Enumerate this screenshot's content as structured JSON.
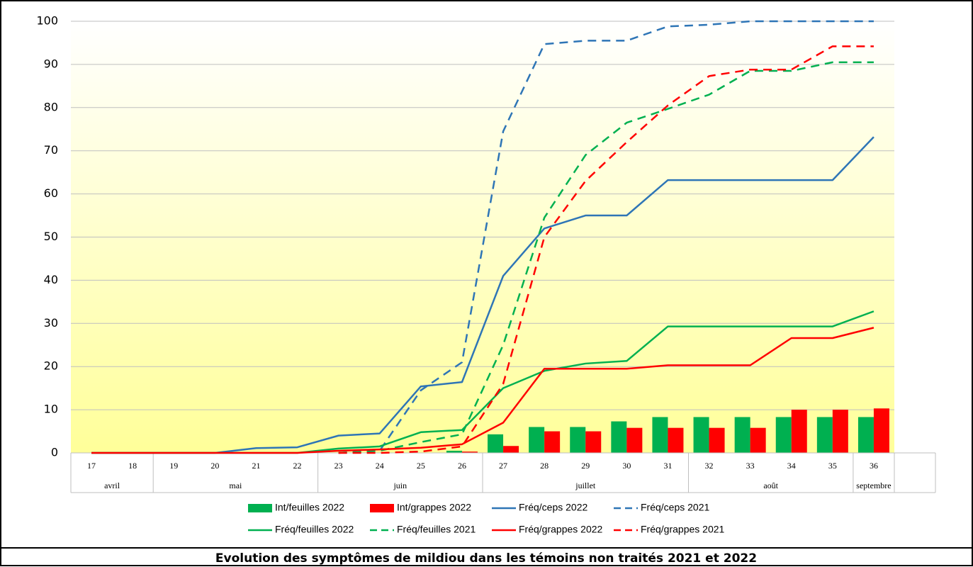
{
  "chart_data": {
    "type": "bar_line",
    "title": "Evolution des symptômes de mildiou dans les témoins non traités 2021 et 2022",
    "categories": [
      "17",
      "18",
      "19",
      "20",
      "21",
      "22",
      "23",
      "24",
      "25",
      "26",
      "27",
      "28",
      "29",
      "30",
      "31",
      "32",
      "33",
      "34",
      "35",
      "36"
    ],
    "category_groups": [
      {
        "label": "avril",
        "count": 2
      },
      {
        "label": "mai",
        "count": 4
      },
      {
        "label": "juin",
        "count": 4
      },
      {
        "label": "juillet",
        "count": 5
      },
      {
        "label": "août",
        "count": 4
      },
      {
        "label": "septembre",
        "count": 1
      }
    ],
    "ylim": [
      0,
      100
    ],
    "yticks": [
      0,
      10,
      20,
      30,
      40,
      50,
      60,
      70,
      80,
      90,
      100
    ],
    "grid": true,
    "series": [
      {
        "name": "Int/feuilles 2022",
        "type": "bar",
        "color": "#00b050",
        "dashed": false,
        "values": [
          0,
          0,
          0,
          0,
          0,
          0,
          0,
          0,
          0,
          0.5,
          4.3,
          6,
          6,
          7.3,
          8.3,
          8.3,
          8.3,
          8.3,
          8.3,
          8.3
        ]
      },
      {
        "name": "Int/grappes 2022",
        "type": "bar",
        "color": "#ff0000",
        "dashed": false,
        "values": [
          0,
          0,
          0,
          0,
          0,
          0,
          0,
          0,
          0,
          0.3,
          1.6,
          5,
          5,
          5.8,
          5.8,
          5.8,
          5.8,
          10,
          10,
          10.3
        ]
      },
      {
        "name": "Fréq/ceps 2022",
        "type": "line",
        "color": "#2e75b6",
        "dashed": false,
        "values": [
          0,
          0,
          0,
          0,
          1.1,
          1.3,
          4,
          4.5,
          15.4,
          16.4,
          41,
          52,
          55,
          55,
          63.2,
          63.2,
          63.2,
          63.2,
          63.2,
          73.2
        ]
      },
      {
        "name": "Fréq/ceps 2021",
        "type": "line",
        "color": "#2e75b6",
        "dashed": true,
        "values": [
          null,
          null,
          null,
          null,
          null,
          null,
          0,
          0.5,
          14.5,
          21,
          74.5,
          94.7,
          95.5,
          95.5,
          98.8,
          99.2,
          100,
          100,
          100,
          100
        ]
      },
      {
        "name": "Fréq/feuilles 2022",
        "type": "line",
        "color": "#00b050",
        "dashed": false,
        "values": [
          0,
          0,
          0,
          0,
          0,
          0,
          1,
          1.5,
          4.8,
          5.3,
          15,
          19,
          20.7,
          21.3,
          29.3,
          29.3,
          29.3,
          29.3,
          29.3,
          32.8
        ]
      },
      {
        "name": "Fréq/feuilles 2021",
        "type": "line",
        "color": "#00b050",
        "dashed": true,
        "values": [
          null,
          null,
          null,
          null,
          null,
          null,
          0,
          0.5,
          2.5,
          4.3,
          25,
          54.5,
          69,
          76.5,
          79.7,
          83,
          88.5,
          88.5,
          90.5,
          90.5
        ]
      },
      {
        "name": "Fréq/grappes 2022",
        "type": "line",
        "color": "#ff0000",
        "dashed": false,
        "values": [
          0,
          0,
          0,
          0,
          0,
          0,
          0.5,
          0.8,
          1.2,
          2,
          7,
          19.5,
          19.5,
          19.5,
          20.3,
          20.3,
          20.3,
          26.6,
          26.6,
          29
        ]
      },
      {
        "name": "Fréq/grappes 2021",
        "type": "line",
        "color": "#ff0000",
        "dashed": true,
        "values": [
          null,
          null,
          null,
          null,
          null,
          null,
          0,
          0,
          0.3,
          1.5,
          16,
          50,
          63,
          72,
          80.5,
          87.3,
          88.8,
          88.8,
          94.2,
          94.2
        ]
      }
    ]
  }
}
